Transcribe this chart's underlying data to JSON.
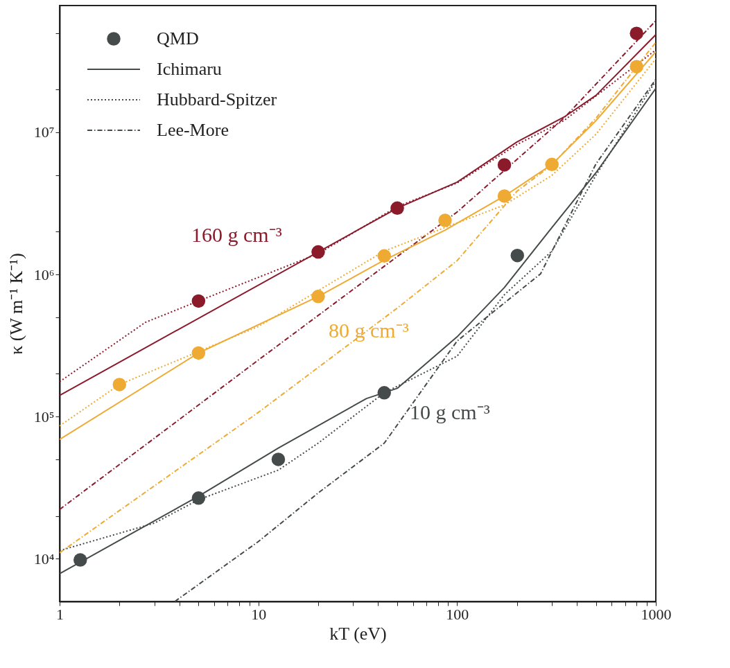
{
  "chart_data": {
    "type": "line",
    "xlabel": "kT (eV)",
    "ylabel": "κ (W m⁻¹ K⁻¹)",
    "log": "xy",
    "grid": false,
    "legend": "top left",
    "xlim": [
      1,
      1000
    ],
    "ylim": [
      5000,
      78000000
    ],
    "xticks": [
      1,
      {
        "value": 2,
        "label": null
      },
      {
        "value": 3,
        "label": null
      },
      {
        "value": 4,
        "label": null
      },
      {
        "value": 5,
        "label": null
      },
      {
        "value": 6,
        "label": null
      },
      {
        "value": 7,
        "label": null
      },
      {
        "value": 8,
        "label": null
      },
      {
        "value": 9,
        "label": null
      },
      10,
      {
        "value": 20,
        "label": null
      },
      {
        "value": 30,
        "label": null
      },
      {
        "value": 40,
        "label": null
      },
      {
        "value": 50,
        "label": null
      },
      {
        "value": 60,
        "label": null
      },
      {
        "value": 70,
        "label": null
      },
      {
        "value": 80,
        "label": null
      },
      {
        "value": 90,
        "label": null
      },
      100,
      {
        "value": 200,
        "label": null
      },
      {
        "value": 300,
        "label": null
      },
      {
        "value": 400,
        "label": null
      },
      {
        "value": 500,
        "label": null
      },
      {
        "value": 600,
        "label": null
      },
      {
        "value": 700,
        "label": null
      },
      {
        "value": 800,
        "label": null
      },
      {
        "value": 900,
        "label": null
      },
      1000
    ],
    "yticks": [
      {
        "value": 10000,
        "label": "10⁴"
      },
      {
        "value": 20000,
        "label": null
      },
      {
        "value": 50000,
        "label": null
      },
      {
        "value": 100000,
        "label": "10⁵"
      },
      {
        "value": 200000,
        "label": null
      },
      {
        "value": 500000,
        "label": null
      },
      {
        "value": 1000000,
        "label": "10⁶"
      },
      {
        "value": 2000000,
        "label": null
      },
      {
        "value": 5000000,
        "label": null
      },
      {
        "value": 10000000,
        "label": "10⁷"
      },
      {
        "value": 20000000,
        "label": null
      },
      {
        "value": 50000000,
        "label": null
      }
    ],
    "annotations": [
      "160 g cm⁻³",
      "80 g cm⁻³",
      "10 g cm⁻³"
    ],
    "series": [
      {
        "name": "QMD",
        "type": "scatter",
        "marker": "circle",
        "color": "#454a4a",
        "x": [
          1.27,
          5,
          12.6,
          43,
          201
        ],
        "values": [
          9800,
          26700,
          50000,
          147000,
          1360000
        ]
      },
      {
        "name": "Ichimaru",
        "line_style": "solid",
        "color": "#454a4a",
        "x": [
          1,
          5,
          12.6,
          35,
          50,
          100,
          173,
          300,
          500,
          1000
        ],
        "values": [
          7850,
          27500,
          60000,
          134000,
          158000,
          364000,
          810000,
          2140000,
          5200000,
          20400000
        ]
      },
      {
        "name": "Hubbard-Spitzer",
        "line_style": "dotted",
        "color": "#454a4a",
        "x": [
          1,
          3,
          5,
          12.6,
          20,
          43,
          100,
          173,
          300,
          500,
          1000
        ],
        "values": [
          11400,
          17800,
          26000,
          42000,
          65000,
          147000,
          266000,
          720000,
          1460000,
          5000000,
          23000000
        ]
      },
      {
        "name": "Lee-More",
        "line_style": "dashdot",
        "color": "#454a4a",
        "x": [
          3.8,
          10,
          20,
          43,
          100,
          263,
          500,
          1000
        ],
        "values": [
          5000,
          13200,
          29000,
          65000,
          340000,
          1010000,
          6000000,
          23600000
        ]
      },
      {
        "type": "scatter",
        "marker": "circle",
        "color": "#8b1a2b",
        "x": [
          5,
          20,
          50,
          173,
          800
        ],
        "values": [
          650000,
          1440000,
          2930000,
          5900000,
          49700000
        ]
      },
      {
        "line_style": "solid",
        "color": "#8b1a2b",
        "x": [
          1,
          50,
          100,
          200,
          345,
          500,
          1000
        ],
        "values": [
          141000,
          2930000,
          4460000,
          8550000,
          12800000,
          18200000,
          48700000
        ]
      },
      {
        "line_style": "dotted",
        "color": "#8b1a2b",
        "x": [
          1,
          2.7,
          5,
          20,
          50,
          100,
          200,
          345,
          1000
        ],
        "values": [
          176000,
          460000,
          650000,
          1400000,
          3000000,
          4400000,
          8200000,
          12100000,
          38000000
        ]
      },
      {
        "line_style": "dashdot",
        "color": "#8b1a2b",
        "x": [
          1,
          10,
          100,
          345,
          1000
        ],
        "values": [
          22200,
          250000,
          2750000,
          12600000,
          61000000
        ]
      },
      {
        "type": "scatter",
        "marker": "circle",
        "color": "#eeaa33",
        "x": [
          2,
          5,
          20,
          43,
          87,
          173,
          300,
          800
        ],
        "values": [
          168000,
          280000,
          700000,
          1350000,
          2400000,
          3560000,
          5940000,
          29000000
        ]
      },
      {
        "line_style": "solid",
        "color": "#eeaa33",
        "x": [
          1,
          5,
          20,
          43,
          87,
          173,
          300,
          500,
          1000
        ],
        "values": [
          69000,
          280000,
          700000,
          1260000,
          2050000,
          3560000,
          5940000,
          12100000,
          36900000
        ]
      },
      {
        "line_style": "dotted",
        "color": "#eeaa33",
        "x": [
          1,
          2,
          10,
          43,
          87,
          173,
          300,
          500,
          1000
        ],
        "values": [
          86000,
          168000,
          430000,
          1460000,
          2140000,
          3080000,
          4980000,
          9700000,
          33000000
        ]
      },
      {
        "line_style": "dashdot",
        "color": "#eeaa33",
        "x": [
          1,
          10,
          50,
          100,
          200,
          300,
          500,
          1000
        ],
        "values": [
          11000,
          107000,
          580000,
          1250000,
          3850000,
          5900000,
          12600000,
          43000000
        ]
      }
    ]
  }
}
